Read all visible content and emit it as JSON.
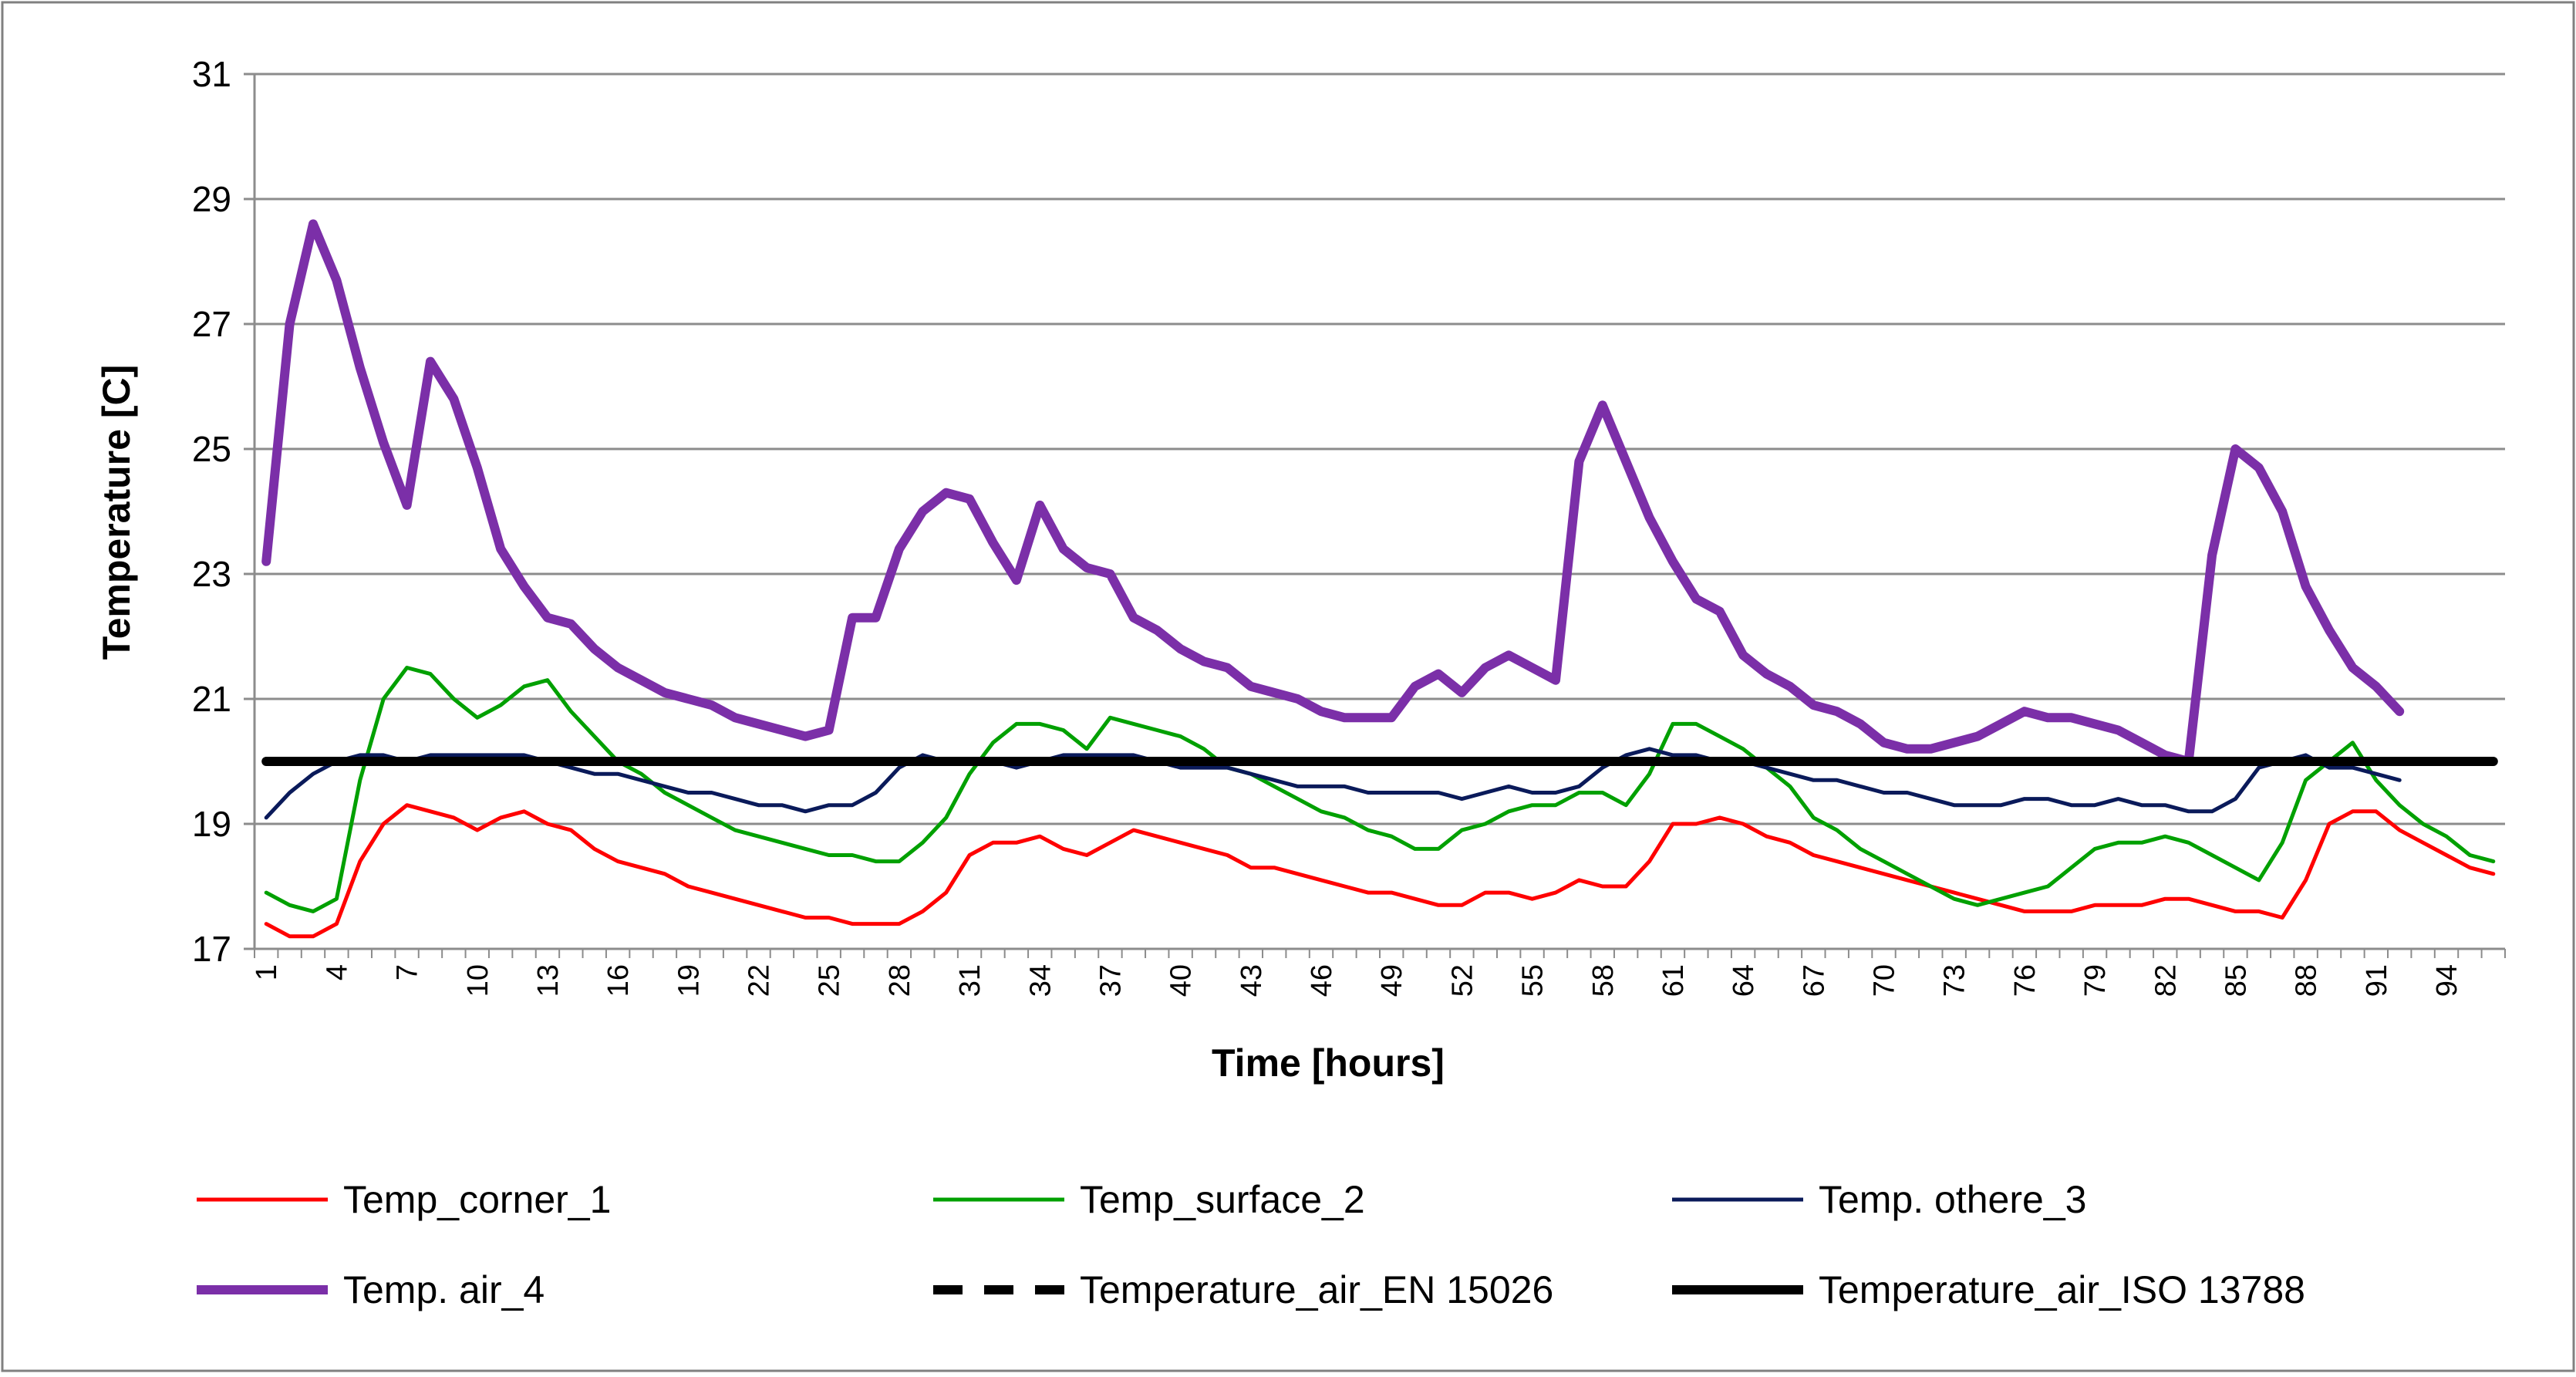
{
  "chart_data": {
    "type": "line",
    "title": "",
    "xlabel": "Time [hours]",
    "ylabel": "Temperature [C]",
    "ylim": [
      17,
      31
    ],
    "yticks": [
      17,
      19,
      21,
      23,
      25,
      27,
      29,
      31
    ],
    "xlim": [
      1,
      96
    ],
    "xticks": [
      1,
      4,
      7,
      10,
      13,
      16,
      19,
      22,
      25,
      28,
      31,
      34,
      37,
      40,
      43,
      46,
      49,
      52,
      55,
      58,
      61,
      64,
      67,
      70,
      73,
      76,
      79,
      82,
      85,
      88,
      91,
      94
    ],
    "grid": "horizontal",
    "legend_position": "bottom",
    "series": [
      {
        "name": "Temp_corner_1",
        "color": "#ff0000",
        "style": "solid",
        "width": "thin",
        "x": [
          1,
          2,
          3,
          4,
          5,
          6,
          7,
          8,
          9,
          10,
          11,
          12,
          13,
          14,
          15,
          16,
          17,
          18,
          19,
          20,
          21,
          22,
          23,
          24,
          25,
          26,
          27,
          28,
          29,
          30,
          31,
          32,
          33,
          34,
          35,
          36,
          37,
          38,
          39,
          40,
          41,
          42,
          43,
          44,
          45,
          46,
          47,
          48,
          49,
          50,
          51,
          52,
          53,
          54,
          55,
          56,
          57,
          58,
          59,
          60,
          61,
          62,
          63,
          64,
          65,
          66,
          67,
          68,
          69,
          70,
          71,
          72,
          73,
          74,
          75,
          76,
          77,
          78,
          79,
          80,
          81,
          82,
          83,
          84,
          85,
          86,
          87,
          88,
          89,
          90,
          91,
          92,
          93,
          94,
          95,
          96
        ],
        "values": [
          17.4,
          17.2,
          17.2,
          17.4,
          18.4,
          19.0,
          19.3,
          19.2,
          19.1,
          18.9,
          19.1,
          19.2,
          19.0,
          18.9,
          18.6,
          18.4,
          18.3,
          18.2,
          18.0,
          17.9,
          17.8,
          17.7,
          17.6,
          17.5,
          17.5,
          17.4,
          17.4,
          17.4,
          17.6,
          17.9,
          18.5,
          18.7,
          18.7,
          18.8,
          18.6,
          18.5,
          18.7,
          18.9,
          18.8,
          18.7,
          18.6,
          18.5,
          18.3,
          18.3,
          18.2,
          18.1,
          18.0,
          17.9,
          17.9,
          17.8,
          17.7,
          17.7,
          17.9,
          17.9,
          17.8,
          17.9,
          18.1,
          18.0,
          18.0,
          18.4,
          19.0,
          19.0,
          19.1,
          19.0,
          18.8,
          18.7,
          18.5,
          18.4,
          18.3,
          18.2,
          18.1,
          18.0,
          17.9,
          17.8,
          17.7,
          17.6,
          17.6,
          17.6,
          17.7,
          17.7,
          17.7,
          17.8,
          17.8,
          17.7,
          17.6,
          17.6,
          17.5,
          18.1,
          19.0,
          19.2,
          19.2,
          18.9,
          18.7,
          18.5,
          18.3,
          18.2
        ]
      },
      {
        "name": "Temp_surface_2",
        "color": "#00a000",
        "style": "solid",
        "width": "thin",
        "x": [
          1,
          2,
          3,
          4,
          5,
          6,
          7,
          8,
          9,
          10,
          11,
          12,
          13,
          14,
          15,
          16,
          17,
          18,
          19,
          20,
          21,
          22,
          23,
          24,
          25,
          26,
          27,
          28,
          29,
          30,
          31,
          32,
          33,
          34,
          35,
          36,
          37,
          38,
          39,
          40,
          41,
          42,
          43,
          44,
          45,
          46,
          47,
          48,
          49,
          50,
          51,
          52,
          53,
          54,
          55,
          56,
          57,
          58,
          59,
          60,
          61,
          62,
          63,
          64,
          65,
          66,
          67,
          68,
          69,
          70,
          71,
          72,
          73,
          74,
          75,
          76,
          77,
          78,
          79,
          80,
          81,
          82,
          83,
          84,
          85,
          86,
          87,
          88,
          89,
          90,
          91,
          92,
          93,
          94,
          95,
          96
        ],
        "values": [
          17.9,
          17.7,
          17.6,
          17.8,
          19.7,
          21.0,
          21.5,
          21.4,
          21.0,
          20.7,
          20.9,
          21.2,
          21.3,
          20.8,
          20.4,
          20.0,
          19.8,
          19.5,
          19.3,
          19.1,
          18.9,
          18.8,
          18.7,
          18.6,
          18.5,
          18.5,
          18.4,
          18.4,
          18.7,
          19.1,
          19.8,
          20.3,
          20.6,
          20.6,
          20.5,
          20.2,
          20.7,
          20.6,
          20.5,
          20.4,
          20.2,
          19.9,
          19.8,
          19.6,
          19.4,
          19.2,
          19.1,
          18.9,
          18.8,
          18.6,
          18.6,
          18.9,
          19.0,
          19.2,
          19.3,
          19.3,
          19.5,
          19.5,
          19.3,
          19.8,
          20.6,
          20.6,
          20.4,
          20.2,
          19.9,
          19.6,
          19.1,
          18.9,
          18.6,
          18.4,
          18.2,
          18.0,
          17.8,
          17.7,
          17.8,
          17.9,
          18.0,
          18.3,
          18.6,
          18.7,
          18.7,
          18.8,
          18.7,
          18.5,
          18.3,
          18.1,
          18.7,
          19.7,
          20.0,
          20.3,
          19.7,
          19.3,
          19.0,
          18.8,
          18.5,
          18.4
        ]
      },
      {
        "name": "Temp. othere_3",
        "color": "#0a1a5a",
        "style": "solid",
        "width": "thin",
        "x": [
          1,
          2,
          3,
          4,
          5,
          6,
          7,
          8,
          9,
          10,
          11,
          12,
          13,
          14,
          15,
          16,
          17,
          18,
          19,
          20,
          21,
          22,
          23,
          24,
          25,
          26,
          27,
          28,
          29,
          30,
          31,
          32,
          33,
          34,
          35,
          36,
          37,
          38,
          39,
          40,
          41,
          42,
          43,
          44,
          45,
          46,
          47,
          48,
          49,
          50,
          51,
          52,
          53,
          54,
          55,
          56,
          57,
          58,
          59,
          60,
          61,
          62,
          63,
          64,
          65,
          66,
          67,
          68,
          69,
          70,
          71,
          72,
          73,
          74,
          75,
          76,
          77,
          78,
          79,
          80,
          81,
          82,
          83,
          84,
          85,
          86,
          87,
          88,
          89,
          90,
          91,
          92
        ],
        "values": [
          19.1,
          19.5,
          19.8,
          20.0,
          20.1,
          20.1,
          20.0,
          20.1,
          20.1,
          20.1,
          20.1,
          20.1,
          20.0,
          19.9,
          19.8,
          19.8,
          19.7,
          19.6,
          19.5,
          19.5,
          19.4,
          19.3,
          19.3,
          19.2,
          19.3,
          19.3,
          19.5,
          19.9,
          20.1,
          20.0,
          20.0,
          20.0,
          19.9,
          20.0,
          20.1,
          20.1,
          20.1,
          20.1,
          20.0,
          19.9,
          19.9,
          19.9,
          19.8,
          19.7,
          19.6,
          19.6,
          19.6,
          19.5,
          19.5,
          19.5,
          19.5,
          19.4,
          19.5,
          19.6,
          19.5,
          19.5,
          19.6,
          19.9,
          20.1,
          20.2,
          20.1,
          20.1,
          20.0,
          20.0,
          19.9,
          19.8,
          19.7,
          19.7,
          19.6,
          19.5,
          19.5,
          19.4,
          19.3,
          19.3,
          19.3,
          19.4,
          19.4,
          19.3,
          19.3,
          19.4,
          19.3,
          19.3,
          19.2,
          19.2,
          19.4,
          19.9,
          20.0,
          20.1,
          19.9,
          19.9,
          19.8,
          19.7
        ]
      },
      {
        "name": "Temp. air_4",
        "color": "#7b2fa8",
        "style": "solid",
        "width": "thick",
        "x": [
          1,
          2,
          3,
          4,
          5,
          6,
          7,
          8,
          9,
          10,
          11,
          12,
          13,
          14,
          15,
          16,
          17,
          18,
          19,
          20,
          21,
          22,
          23,
          24,
          25,
          26,
          27,
          28,
          29,
          30,
          31,
          32,
          33,
          34,
          35,
          36,
          37,
          38,
          39,
          40,
          41,
          42,
          43,
          44,
          45,
          46,
          47,
          48,
          49,
          50,
          51,
          52,
          53,
          54,
          55,
          56,
          57,
          58,
          59,
          60,
          61,
          62,
          63,
          64,
          65,
          66,
          67,
          68,
          69,
          70,
          71,
          72,
          73,
          74,
          75,
          76,
          77,
          78,
          79,
          80,
          81,
          82,
          83,
          84,
          85,
          86,
          87,
          88,
          89,
          90,
          91,
          92
        ],
        "values": [
          23.2,
          27.0,
          28.6,
          27.7,
          26.3,
          25.1,
          24.1,
          26.4,
          25.8,
          24.7,
          23.4,
          22.8,
          22.3,
          22.2,
          21.8,
          21.5,
          21.3,
          21.1,
          21.0,
          20.9,
          20.7,
          20.6,
          20.5,
          20.4,
          20.5,
          22.3,
          22.3,
          23.4,
          24.0,
          24.3,
          24.2,
          23.5,
          22.9,
          24.1,
          23.4,
          23.1,
          23.0,
          22.3,
          22.1,
          21.8,
          21.6,
          21.5,
          21.2,
          21.1,
          21.0,
          20.8,
          20.7,
          20.7,
          20.7,
          21.2,
          21.4,
          21.1,
          21.5,
          21.7,
          21.5,
          21.3,
          24.8,
          25.7,
          24.8,
          23.9,
          23.2,
          22.6,
          22.4,
          21.7,
          21.4,
          21.2,
          20.9,
          20.8,
          20.6,
          20.3,
          20.2,
          20.2,
          20.3,
          20.4,
          20.6,
          20.8,
          20.7,
          20.7,
          20.6,
          20.5,
          20.3,
          20.1,
          20.0,
          23.3,
          25.0,
          24.7,
          24.0,
          22.8,
          22.1,
          21.5,
          21.2,
          20.8
        ]
      },
      {
        "name": "Temperature_air_EN 15026",
        "color": "#000000",
        "style": "dashed",
        "width": "thick",
        "x": [
          1,
          96
        ],
        "values": [
          20.0,
          20.0
        ]
      },
      {
        "name": "Temperature_air_ISO 13788",
        "color": "#000000",
        "style": "solid",
        "width": "thick",
        "x": [
          1,
          96
        ],
        "values": [
          20.0,
          20.0
        ]
      }
    ]
  }
}
